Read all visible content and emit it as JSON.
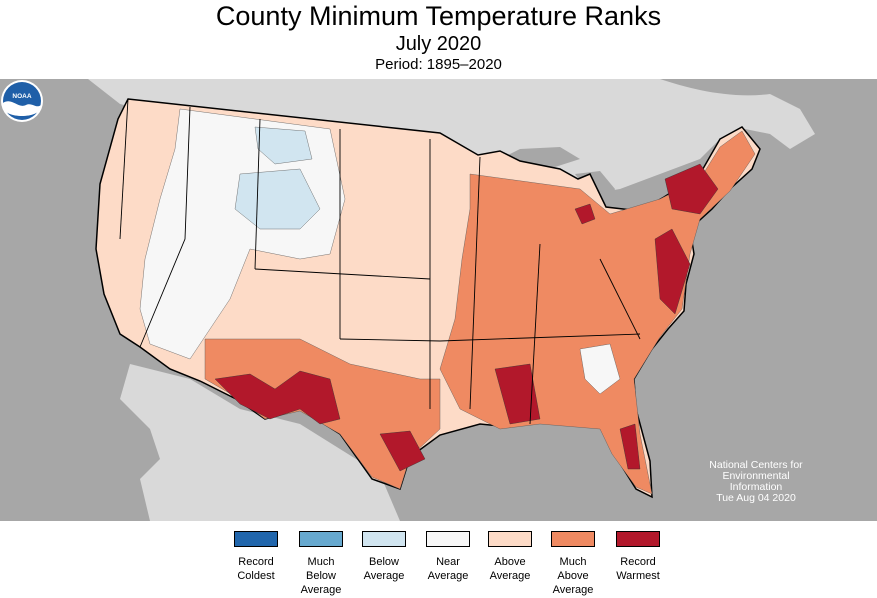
{
  "header": {
    "title": "County Minimum Temperature Ranks",
    "subtitle": "July 2020",
    "period": "Period: 1895–2020"
  },
  "credit": {
    "logo_text": "NOAA",
    "line1": "National Centers for",
    "line2": "Environmental",
    "line3": "Information",
    "date": "Tue Aug 04 2020"
  },
  "colors": {
    "land_outside": "#d9d9d9",
    "ocean": "#a7a7a7",
    "record_coldest": "#2166ac",
    "much_below": "#67a9cf",
    "below": "#d1e5f0",
    "near": "#f7f7f7",
    "above": "#fddbc7",
    "much_above": "#ef8a62",
    "record_warmest": "#b2182b"
  },
  "legend": [
    {
      "label1": "Record",
      "label2": "Coldest",
      "label3": "",
      "color": "#2166ac"
    },
    {
      "label1": "Much",
      "label2": "Below",
      "label3": "Average",
      "color": "#67a9cf"
    },
    {
      "label1": "Below",
      "label2": "Average",
      "label3": "",
      "color": "#d1e5f0"
    },
    {
      "label1": "Near",
      "label2": "Average",
      "label3": "",
      "color": "#f7f7f7"
    },
    {
      "label1": "Above",
      "label2": "Average",
      "label3": "",
      "color": "#fddbc7"
    },
    {
      "label1": "Much",
      "label2": "Above",
      "label3": "Average",
      "color": "#ef8a62"
    },
    {
      "label1": "Record",
      "label2": "Warmest",
      "label3": "",
      "color": "#b2182b"
    }
  ]
}
